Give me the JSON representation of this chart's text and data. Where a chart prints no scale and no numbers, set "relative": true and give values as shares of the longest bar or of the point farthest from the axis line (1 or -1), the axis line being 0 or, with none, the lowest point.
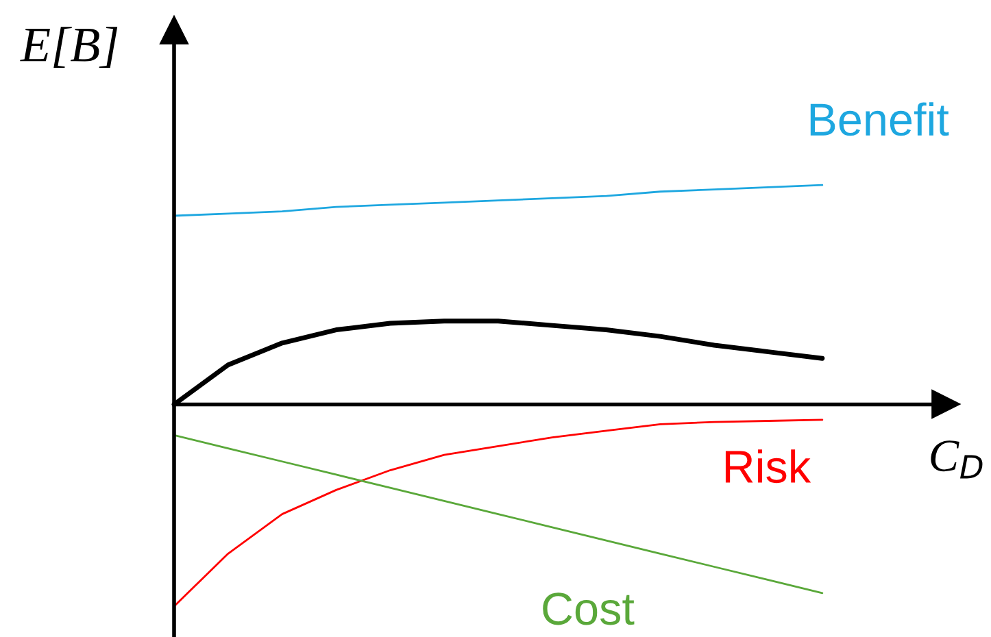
{
  "chart_data": {
    "type": "line",
    "relative": true,
    "xlabel": "C$_{D}$",
    "ylabel": "E[B]",
    "legend": false,
    "marker": "none",
    "line_style": "solid",
    "categories": [
      null,
      null,
      null,
      null,
      null,
      null,
      null,
      null,
      null,
      null,
      null,
      null,
      null
    ],
    "series": [
      {
        "name": "Benefit",
        "color": "#1ea7e0",
        "values": [
          0.86,
          0.87,
          0.88,
          0.9,
          0.91,
          0.92,
          0.93,
          0.94,
          0.95,
          0.97,
          0.98,
          0.99,
          1.0
        ]
      },
      {
        "color": "#000000",
        "values": [
          0,
          0.18,
          0.28,
          0.34,
          0.37,
          0.38,
          0.38,
          0.36,
          0.34,
          0.31,
          0.27,
          0.24,
          0.21
        ]
      },
      {
        "name": "Risk",
        "color": "#ff0000",
        "values": [
          -0.92,
          -0.68,
          -0.5,
          -0.39,
          -0.3,
          -0.23,
          -0.19,
          -0.15,
          -0.12,
          -0.09,
          -0.08,
          -0.075,
          -0.07
        ]
      },
      {
        "name": "Cost",
        "color": "#5aa83a",
        "values": [
          -0.14,
          -0.2,
          -0.26,
          -0.32,
          -0.38,
          -0.44,
          -0.5,
          -0.56,
          -0.62,
          -0.68,
          -0.74,
          -0.8,
          -0.86
        ]
      }
    ]
  }
}
